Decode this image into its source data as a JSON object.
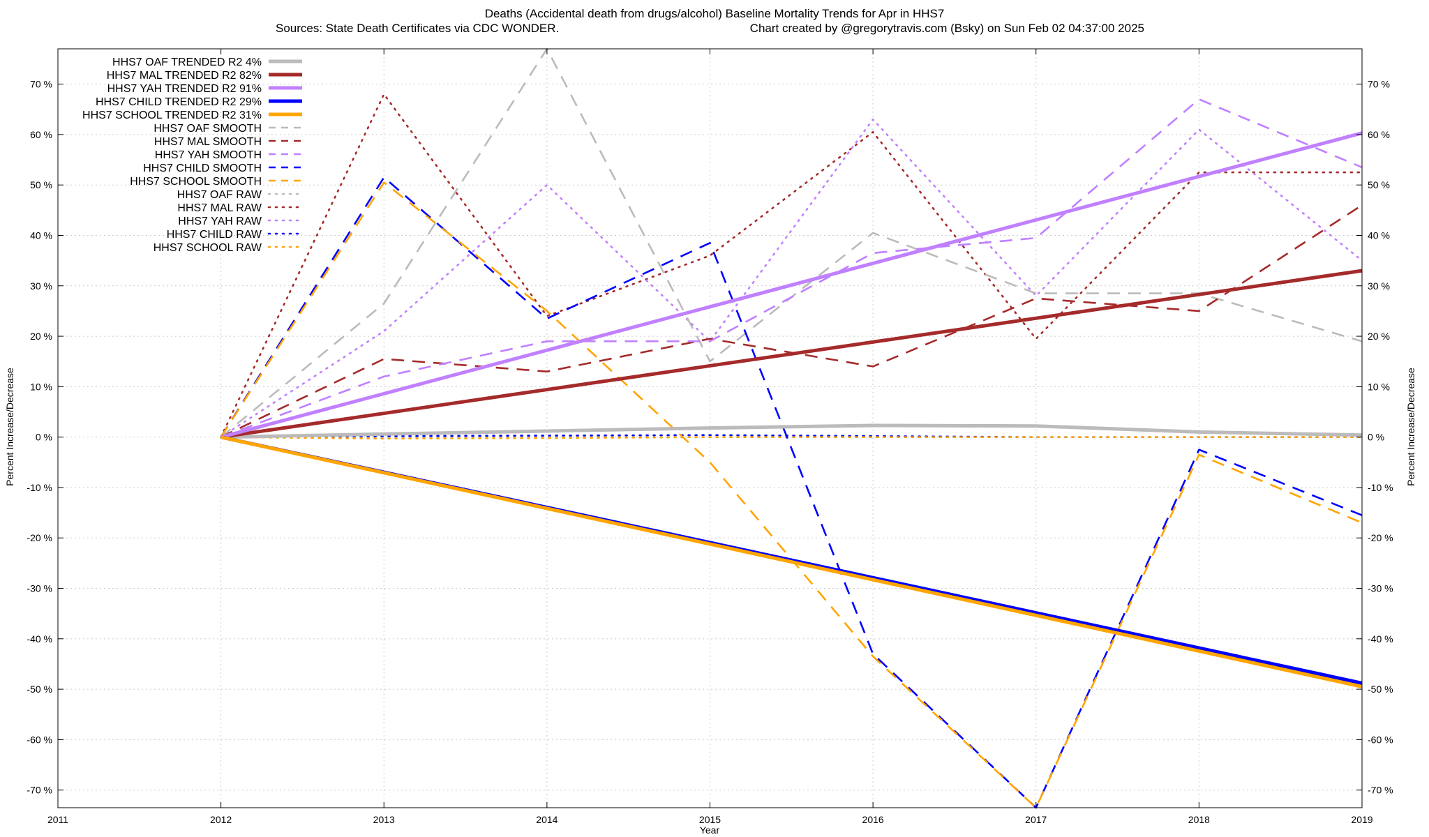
{
  "chart_data": {
    "type": "line",
    "title_line1": "Deaths (Accidental death from drugs/alcohol)  Baseline Mortality Trends for Apr in HHS7",
    "title_line2_left": "Sources: State Death Certificates via CDC WONDER.",
    "title_line2_right": "Chart created by @gregorytravis.com (Bsky) on Sun Feb 02 04:37:00 2025",
    "xlabel": "Year",
    "ylabel_left": "Percent Increase/Decrease",
    "ylabel_right": "Percent Increase/Decrease",
    "xlim": [
      2011,
      2019
    ],
    "ylim": [
      -73.5,
      77
    ],
    "x_ticks": [
      "2011",
      "2012",
      "2013",
      "2014",
      "2015",
      "2016",
      "2017",
      "2018",
      "2019"
    ],
    "y_ticks": [
      {
        "value": 70,
        "label": "70 %"
      },
      {
        "value": 60,
        "label": "60 %"
      },
      {
        "value": 50,
        "label": "50 %"
      },
      {
        "value": 40,
        "label": "40 %"
      },
      {
        "value": 30,
        "label": "30 %"
      },
      {
        "value": 20,
        "label": "20 %"
      },
      {
        "value": 10,
        "label": "10 %"
      },
      {
        "value": 0,
        "label": "0 %"
      },
      {
        "value": -10,
        "label": "-10 %"
      },
      {
        "value": -20,
        "label": "-20 %"
      },
      {
        "value": -30,
        "label": "-30 %"
      },
      {
        "value": -40,
        "label": "-40 %"
      },
      {
        "value": -50,
        "label": "-50 %"
      },
      {
        "value": -60,
        "label": "-60 %"
      },
      {
        "value": -70,
        "label": "-70 %"
      }
    ],
    "grid": true,
    "legend_position": "top-left",
    "series": [
      {
        "name": "HHS7 OAF TRENDED R2",
        "r2": "4%",
        "color": "#bbbbbb",
        "style": "trend",
        "x": [
          2012,
          2013,
          2014,
          2015,
          2016,
          2017,
          2018,
          2019
        ],
        "y": [
          0,
          0.6,
          1.2,
          1.8,
          2.3,
          2.2,
          1.0,
          0.4
        ]
      },
      {
        "name": "HHS7 MAL TRENDED R2",
        "r2": "82%",
        "color": "#a52a2a",
        "style": "trend",
        "x": [
          2012,
          2019
        ],
        "y": [
          0,
          33
        ]
      },
      {
        "name": "HHS7 YAH TRENDED R2",
        "r2": "91%",
        "color": "#c080ff",
        "style": "trend",
        "x": [
          2012,
          2019
        ],
        "y": [
          0,
          60.3
        ]
      },
      {
        "name": "HHS7 CHILD TRENDED R2",
        "r2": "29%",
        "color": "#0000ff",
        "style": "trend",
        "x": [
          2012,
          2019
        ],
        "y": [
          0,
          -48.8
        ]
      },
      {
        "name": "HHS7 SCHOOL TRENDED R2",
        "r2": "31%",
        "color": "#ffa500",
        "style": "trend",
        "x": [
          2012,
          2019
        ],
        "y": [
          0,
          -49.5
        ]
      },
      {
        "name": "HHS7 OAF SMOOTH",
        "r2": "",
        "color": "#bbbbbb",
        "style": "smooth",
        "x": [
          2012,
          2013,
          2014,
          2015,
          2016,
          2017,
          2018,
          2019
        ],
        "y": [
          0,
          26.5,
          77,
          15,
          40.5,
          28.5,
          28.5,
          19
        ]
      },
      {
        "name": "HHS7 MAL SMOOTH",
        "r2": "",
        "color": "#a52a2a",
        "style": "smooth",
        "x": [
          2012,
          2013,
          2014,
          2015,
          2016,
          2017,
          2018,
          2019
        ],
        "y": [
          0,
          15.5,
          13,
          19.5,
          14,
          27.5,
          25,
          46
        ]
      },
      {
        "name": "HHS7 YAH SMOOTH",
        "r2": "",
        "color": "#c080ff",
        "style": "smooth",
        "x": [
          2012,
          2013,
          2014,
          2015,
          2016,
          2017,
          2018,
          2019
        ],
        "y": [
          0,
          12,
          19,
          19,
          36.5,
          39.5,
          67,
          53.5
        ]
      },
      {
        "name": "HHS7 CHILD SMOOTH",
        "r2": "",
        "color": "#0000ff",
        "style": "smooth",
        "x": [
          2012,
          2013,
          2014,
          2015,
          2016,
          2017,
          2018,
          2019
        ],
        "y": [
          0,
          51.5,
          23.5,
          38.5,
          -43,
          -73.5,
          -2.5,
          -15.5
        ]
      },
      {
        "name": "HHS7 SCHOOL SMOOTH",
        "r2": "",
        "color": "#ffa500",
        "style": "smooth",
        "x": [
          2012,
          2013,
          2014,
          2015,
          2016,
          2017,
          2018,
          2019
        ],
        "y": [
          0,
          50.5,
          25,
          -5,
          -43.5,
          -73.5,
          -3.5,
          -17
        ]
      },
      {
        "name": "HHS7 OAF RAW",
        "r2": "",
        "color": "#bbbbbb",
        "style": "raw",
        "x": [
          2012,
          2013,
          2014,
          2015,
          2016,
          2017,
          2018,
          2019
        ],
        "y": [
          0,
          0,
          0,
          0,
          0,
          0,
          0,
          0
        ]
      },
      {
        "name": "HHS7 MAL RAW",
        "r2": "",
        "color": "#a52a2a",
        "style": "raw",
        "x": [
          2012,
          2013,
          2014,
          2015,
          2016,
          2017,
          2018,
          2019
        ],
        "y": [
          0,
          68,
          24,
          36,
          60.5,
          19.5,
          52.5,
          52.5
        ]
      },
      {
        "name": "HHS7 YAH RAW",
        "r2": "",
        "color": "#c080ff",
        "style": "raw",
        "x": [
          2012,
          2013,
          2014,
          2015,
          2016,
          2017,
          2018,
          2019
        ],
        "y": [
          0,
          21,
          50,
          19,
          63,
          28,
          61,
          35
        ]
      },
      {
        "name": "HHS7 CHILD RAW",
        "r2": "",
        "color": "#0000ff",
        "style": "raw",
        "x": [
          2012,
          2013,
          2014,
          2015,
          2016,
          2017,
          2018,
          2019
        ],
        "y": [
          0,
          0.2,
          0.3,
          0.4,
          0.2,
          0,
          0,
          0
        ]
      },
      {
        "name": "HHS7 SCHOOL RAW",
        "r2": "",
        "color": "#ffa500",
        "style": "raw",
        "x": [
          2012,
          2013,
          2014,
          2015,
          2016,
          2017,
          2018,
          2019
        ],
        "y": [
          0,
          -0.3,
          -0.2,
          0,
          0,
          0,
          0,
          0
        ]
      }
    ]
  }
}
